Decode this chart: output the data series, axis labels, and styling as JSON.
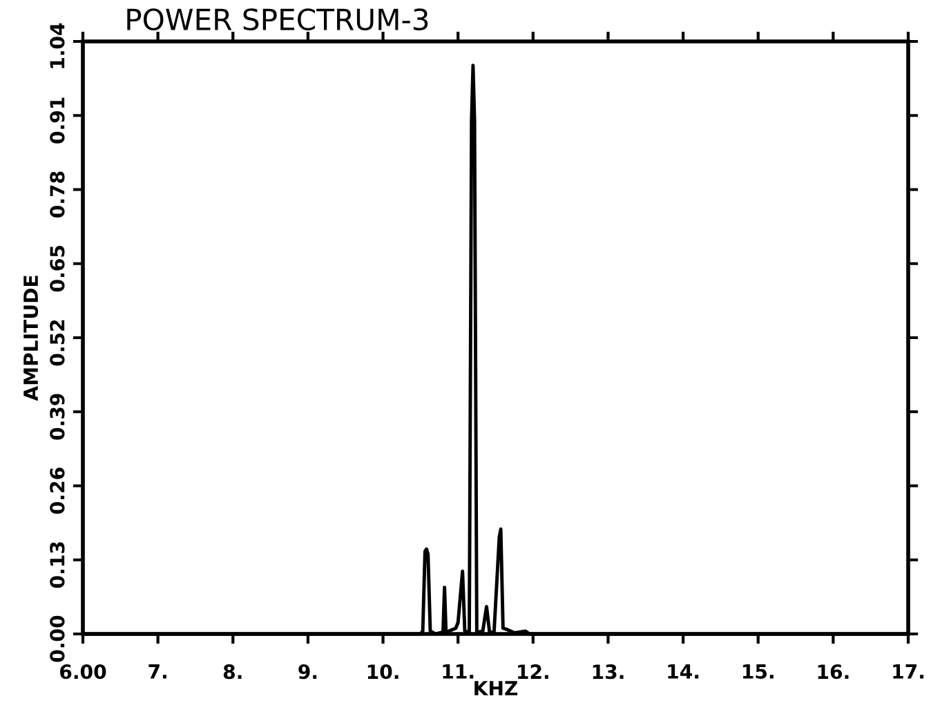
{
  "chart_data": {
    "type": "line",
    "title": "POWER SPECTRUM-3",
    "xlabel": "KHZ",
    "ylabel": "AMPLITUDE",
    "x": [
      6.0,
      10.5,
      10.53,
      10.56,
      10.58,
      10.6,
      10.63,
      10.7,
      10.8,
      10.82,
      10.84,
      10.97,
      11.0,
      11.06,
      11.09,
      11.15,
      11.18,
      11.2,
      11.22,
      11.25,
      11.33,
      11.38,
      11.42,
      11.48,
      11.55,
      11.57,
      11.6,
      11.65,
      11.75,
      11.9,
      11.95,
      17.0
    ],
    "values": [
      0,
      0,
      0.005,
      0.145,
      0.149,
      0.14,
      0.005,
      0,
      0.003,
      0.082,
      0.003,
      0.01,
      0.02,
      0.11,
      0.005,
      0.003,
      0.9,
      0.998,
      0.9,
      0.003,
      0.005,
      0.048,
      0.003,
      0.003,
      0.17,
      0.184,
      0.01,
      0.008,
      0.002,
      0.005,
      0,
      0
    ],
    "color": "#000000",
    "xlim": [
      6,
      17
    ],
    "ylim": [
      0,
      1.04
    ],
    "xticks": [
      {
        "value": 6,
        "label": "6.00"
      },
      {
        "value": 7,
        "label": "7."
      },
      {
        "value": 8,
        "label": "8."
      },
      {
        "value": 9,
        "label": "9."
      },
      {
        "value": 10,
        "label": "10."
      },
      {
        "value": 11,
        "label": "11."
      },
      {
        "value": 12,
        "label": "12."
      },
      {
        "value": 13,
        "label": "13."
      },
      {
        "value": 14,
        "label": "14."
      },
      {
        "value": 15,
        "label": "15."
      },
      {
        "value": 16,
        "label": "16."
      },
      {
        "value": 17,
        "label": "17."
      }
    ],
    "yticks": [
      {
        "value": 0,
        "label": "0.00"
      },
      0.13,
      0.26,
      0.39,
      0.52,
      0.65,
      0.78,
      0.91,
      1.04
    ],
    "grid": false,
    "marker": "none",
    "line_style": "solid"
  }
}
